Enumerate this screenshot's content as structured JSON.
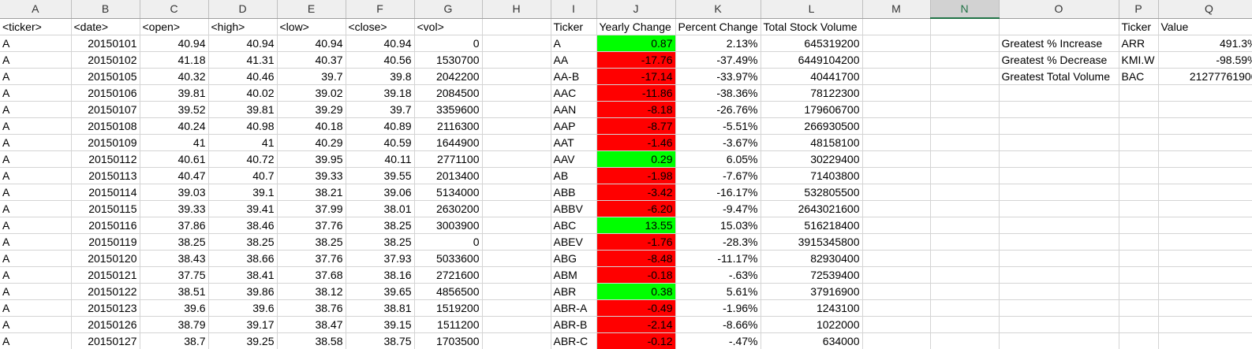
{
  "columns": [
    "A",
    "B",
    "C",
    "D",
    "E",
    "F",
    "G",
    "H",
    "I",
    "J",
    "K",
    "L",
    "M",
    "N",
    "O",
    "P",
    "Q"
  ],
  "colors": {
    "positive_fill": "#00ff00",
    "negative_fill": "#ff0000",
    "header_bg": "#efefef",
    "selected_header": "#217346"
  },
  "rows": [
    [
      "<ticker>",
      "<date>",
      "<open>",
      "<high>",
      "<low>",
      "<close>",
      "<vol>",
      "",
      "Ticker",
      "Yearly Change",
      "Percent Change",
      "Total Stock Volume",
      "",
      "",
      "",
      "Ticker",
      "Value"
    ],
    [
      "A",
      "20150101",
      "40.94",
      "40.94",
      "40.94",
      "40.94",
      "0",
      "",
      "A",
      "0.87",
      "2.13%",
      "645319200",
      "",
      "",
      "Greatest % Increase",
      "ARR",
      "491.3%"
    ],
    [
      "A",
      "20150102",
      "41.18",
      "41.31",
      "40.37",
      "40.56",
      "1530700",
      "",
      "AA",
      "-17.76",
      "-37.49%",
      "6449104200",
      "",
      "",
      "Greatest % Decrease",
      "KMI.W",
      "-98.59%"
    ],
    [
      "A",
      "20150105",
      "40.32",
      "40.46",
      "39.7",
      "39.8",
      "2042200",
      "",
      "AA-B",
      "-17.14",
      "-33.97%",
      "40441700",
      "",
      "",
      "Greatest Total Volume",
      "BAC",
      "21277761900"
    ],
    [
      "A",
      "20150106",
      "39.81",
      "40.02",
      "39.02",
      "39.18",
      "2084500",
      "",
      "AAC",
      "-11.86",
      "-38.36%",
      "78122300",
      "",
      "",
      "",
      "",
      ""
    ],
    [
      "A",
      "20150107",
      "39.52",
      "39.81",
      "39.29",
      "39.7",
      "3359600",
      "",
      "AAN",
      "-8.18",
      "-26.76%",
      "179606700",
      "",
      "",
      "",
      "",
      ""
    ],
    [
      "A",
      "20150108",
      "40.24",
      "40.98",
      "40.18",
      "40.89",
      "2116300",
      "",
      "AAP",
      "-8.77",
      "-5.51%",
      "266930500",
      "",
      "",
      "",
      "",
      ""
    ],
    [
      "A",
      "20150109",
      "41",
      "41",
      "40.29",
      "40.59",
      "1644900",
      "",
      "AAT",
      "-1.46",
      "-3.67%",
      "48158100",
      "",
      "",
      "",
      "",
      ""
    ],
    [
      "A",
      "20150112",
      "40.61",
      "40.72",
      "39.95",
      "40.11",
      "2771100",
      "",
      "AAV",
      "0.29",
      "6.05%",
      "30229400",
      "",
      "",
      "",
      "",
      ""
    ],
    [
      "A",
      "20150113",
      "40.47",
      "40.7",
      "39.33",
      "39.55",
      "2013400",
      "",
      "AB",
      "-1.98",
      "-7.67%",
      "71403800",
      "",
      "",
      "",
      "",
      ""
    ],
    [
      "A",
      "20150114",
      "39.03",
      "39.1",
      "38.21",
      "39.06",
      "5134000",
      "",
      "ABB",
      "-3.42",
      "-16.17%",
      "532805500",
      "",
      "",
      "",
      "",
      ""
    ],
    [
      "A",
      "20150115",
      "39.33",
      "39.41",
      "37.99",
      "38.01",
      "2630200",
      "",
      "ABBV",
      "-6.20",
      "-9.47%",
      "2643021600",
      "",
      "",
      "",
      "",
      ""
    ],
    [
      "A",
      "20150116",
      "37.86",
      "38.46",
      "37.76",
      "38.25",
      "3003900",
      "",
      "ABC",
      "13.55",
      "15.03%",
      "516218400",
      "",
      "",
      "",
      "",
      ""
    ],
    [
      "A",
      "20150119",
      "38.25",
      "38.25",
      "38.25",
      "38.25",
      "0",
      "",
      "ABEV",
      "-1.76",
      "-28.3%",
      "3915345800",
      "",
      "",
      "",
      "",
      ""
    ],
    [
      "A",
      "20150120",
      "38.43",
      "38.66",
      "37.76",
      "37.93",
      "5033600",
      "",
      "ABG",
      "-8.48",
      "-11.17%",
      "82930400",
      "",
      "",
      "",
      "",
      ""
    ],
    [
      "A",
      "20150121",
      "37.75",
      "38.41",
      "37.68",
      "38.16",
      "2721600",
      "",
      "ABM",
      "-0.18",
      "-.63%",
      "72539400",
      "",
      "",
      "",
      "",
      ""
    ],
    [
      "A",
      "20150122",
      "38.51",
      "39.86",
      "38.12",
      "39.65",
      "4856500",
      "",
      "ABR",
      "0.38",
      "5.61%",
      "37916900",
      "",
      "",
      "",
      "",
      ""
    ],
    [
      "A",
      "20150123",
      "39.6",
      "39.6",
      "38.76",
      "38.81",
      "1519200",
      "",
      "ABR-A",
      "-0.49",
      "-1.96%",
      "1243100",
      "",
      "",
      "",
      "",
      ""
    ],
    [
      "A",
      "20150126",
      "38.79",
      "39.17",
      "38.47",
      "39.15",
      "1511200",
      "",
      "ABR-B",
      "-2.14",
      "-8.66%",
      "1022000",
      "",
      "",
      "",
      "",
      ""
    ],
    [
      "A",
      "20150127",
      "38.7",
      "39.25",
      "38.58",
      "38.75",
      "1703500",
      "",
      "ABR-C",
      "-0.12",
      "-.47%",
      "634000",
      "",
      "",
      "",
      "",
      ""
    ]
  ]
}
